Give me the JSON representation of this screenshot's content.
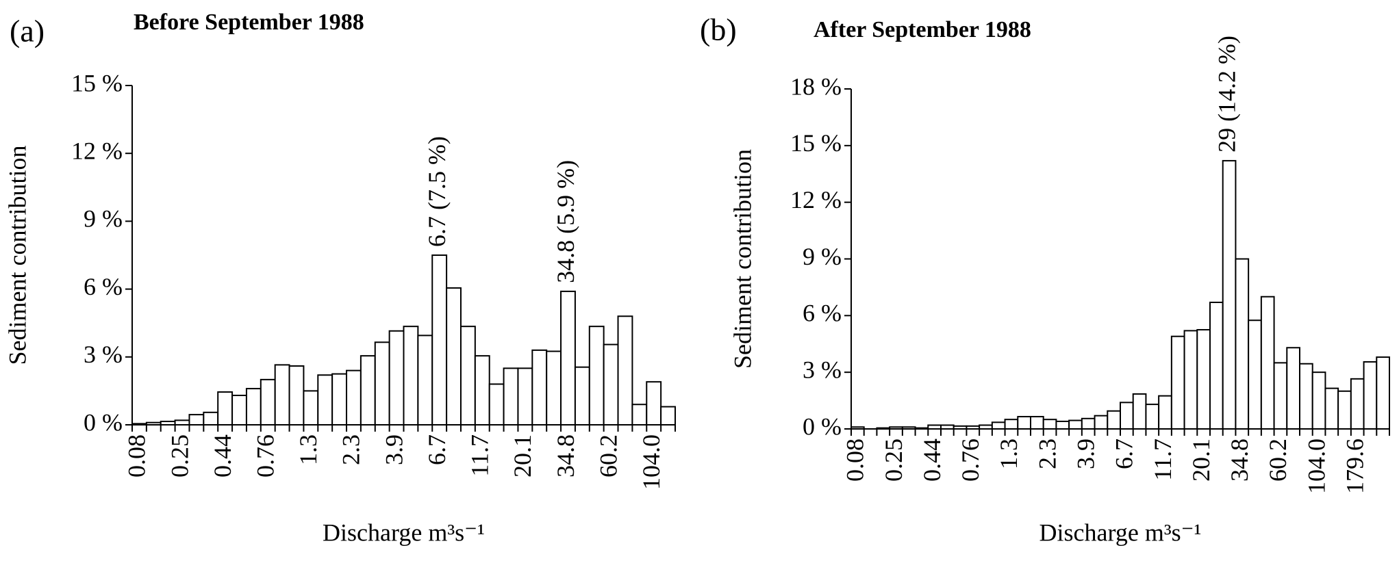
{
  "chart_data": [
    {
      "type": "bar",
      "panel_label": "(a)",
      "title": "Before September 1988",
      "x_label": "Discharge m³s⁻¹",
      "y_label": "Sediment contribution",
      "color": "#ffffff",
      "edge_color": "#000000",
      "categories": [
        "0.08",
        null,
        null,
        "0.25",
        null,
        null,
        "0.44",
        null,
        null,
        "0.76",
        null,
        null,
        "1.3",
        null,
        null,
        "2.3",
        null,
        null,
        "3.9",
        null,
        null,
        "6.7",
        null,
        null,
        "11.7",
        null,
        null,
        "20.1",
        null,
        null,
        "34.8",
        null,
        null,
        "60.2",
        null,
        null,
        "104.0",
        null
      ],
      "values": [
        0.05,
        0.1,
        0.15,
        0.2,
        0.45,
        0.55,
        1.45,
        1.3,
        1.6,
        2.0,
        2.65,
        2.6,
        1.5,
        2.2,
        2.25,
        2.4,
        3.05,
        3.65,
        4.15,
        4.35,
        3.95,
        7.5,
        6.05,
        4.35,
        3.05,
        1.8,
        2.5,
        2.5,
        3.3,
        3.25,
        5.9,
        2.55,
        4.35,
        3.55,
        4.8,
        0.9,
        1.9,
        0.8
      ],
      "ylim": [
        0,
        15
      ],
      "yticks": [
        {
          "value": 0,
          "label": "0 %"
        },
        {
          "value": 3,
          "label": "3 %"
        },
        {
          "value": 6,
          "label": "6 %"
        },
        {
          "value": 9,
          "label": "9 %"
        },
        {
          "value": 12,
          "label": "12 %"
        },
        {
          "value": 15,
          "label": "15 %"
        }
      ],
      "annotations": [
        "6.7 (7.5 %)",
        "34.8 (5.9 %)"
      ]
    },
    {
      "type": "bar",
      "panel_label": "(b)",
      "title": "After September 1988",
      "x_label": "Discharge m³s⁻¹",
      "y_label": "Sediment contribution",
      "color": "#ffffff",
      "edge_color": "#000000",
      "categories": [
        "0.08",
        null,
        null,
        "0.25",
        null,
        null,
        "0.44",
        null,
        null,
        "0.76",
        null,
        null,
        "1.3",
        null,
        null,
        "2.3",
        null,
        null,
        "3.9",
        null,
        null,
        "6.7",
        null,
        null,
        "11.7",
        null,
        null,
        "20.1",
        null,
        null,
        "34.8",
        null,
        null,
        "60.2",
        null,
        null,
        "104.0",
        null,
        null,
        "179.6",
        null,
        null
      ],
      "values": [
        0.1,
        0.0,
        0.05,
        0.1,
        0.1,
        0.05,
        0.2,
        0.2,
        0.15,
        0.15,
        0.2,
        0.35,
        0.5,
        0.65,
        0.65,
        0.5,
        0.4,
        0.45,
        0.55,
        0.7,
        0.95,
        1.4,
        1.85,
        1.3,
        1.75,
        4.9,
        5.2,
        5.25,
        6.7,
        14.2,
        9.0,
        5.75,
        7.0,
        3.5,
        4.3,
        3.45,
        3.0,
        2.15,
        2.0,
        2.65,
        3.55,
        3.8
      ],
      "ylim": [
        0,
        18
      ],
      "yticks": [
        {
          "value": 0,
          "label": "0 %"
        },
        {
          "value": 3,
          "label": "3 %"
        },
        {
          "value": 6,
          "label": "6 %"
        },
        {
          "value": 9,
          "label": "9 %"
        },
        {
          "value": 12,
          "label": "12 %"
        },
        {
          "value": 15,
          "label": "15 %"
        },
        {
          "value": 18,
          "label": "18 %"
        }
      ],
      "annotations": [
        "29 (14.2 %)"
      ]
    }
  ]
}
